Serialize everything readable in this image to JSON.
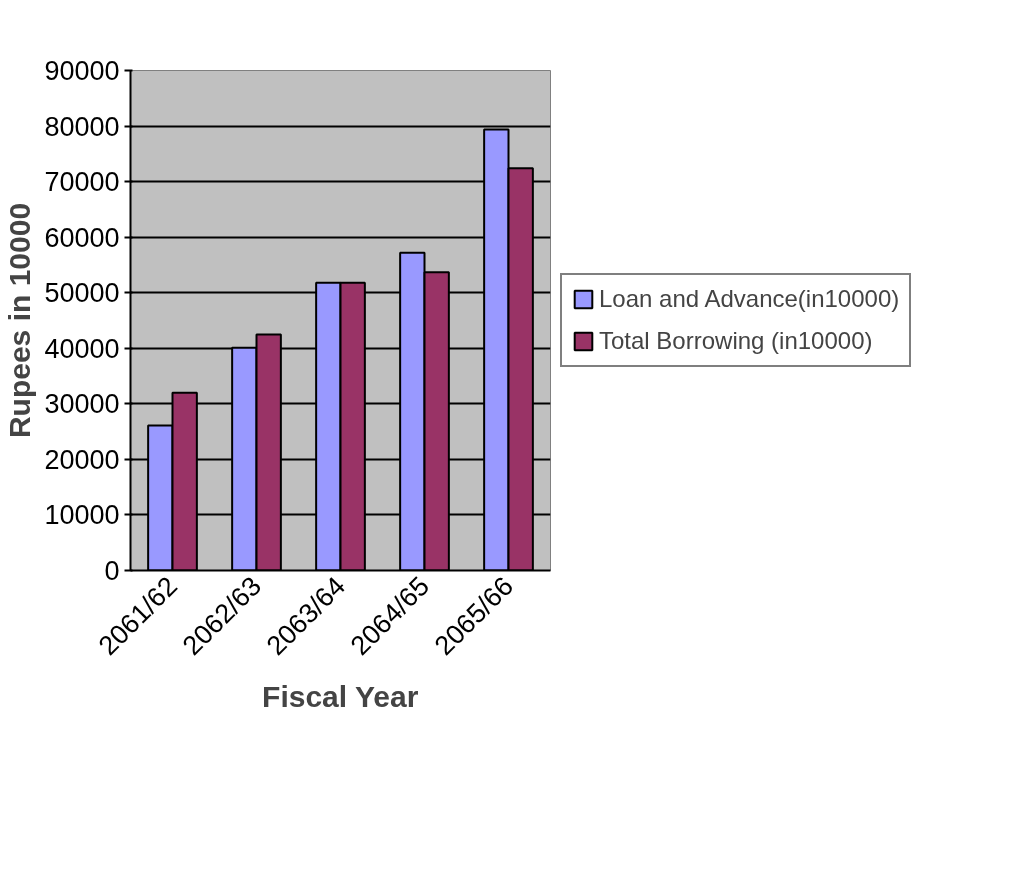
{
  "chart_data": {
    "type": "bar",
    "xlabel": "Fiscal Year",
    "ylabel": "Rupees in 10000",
    "categories": [
      "2061/62",
      "2062/63",
      "2063/64",
      "2064/65",
      "2065/66"
    ],
    "series": [
      {
        "name": "Loan and Advance(in10000)",
        "color": "#9999ff",
        "values": [
          26100,
          40100,
          51800,
          57200,
          79400
        ]
      },
      {
        "name": "Total Borrowing (in10000)",
        "color": "#993366",
        "values": [
          32000,
          42500,
          51800,
          53700,
          72400
        ]
      }
    ],
    "ylim": [
      0,
      90000
    ],
    "yticks": [
      0,
      10000,
      20000,
      30000,
      40000,
      50000,
      60000,
      70000,
      80000,
      90000
    ],
    "grid": "y",
    "legend": "right"
  }
}
